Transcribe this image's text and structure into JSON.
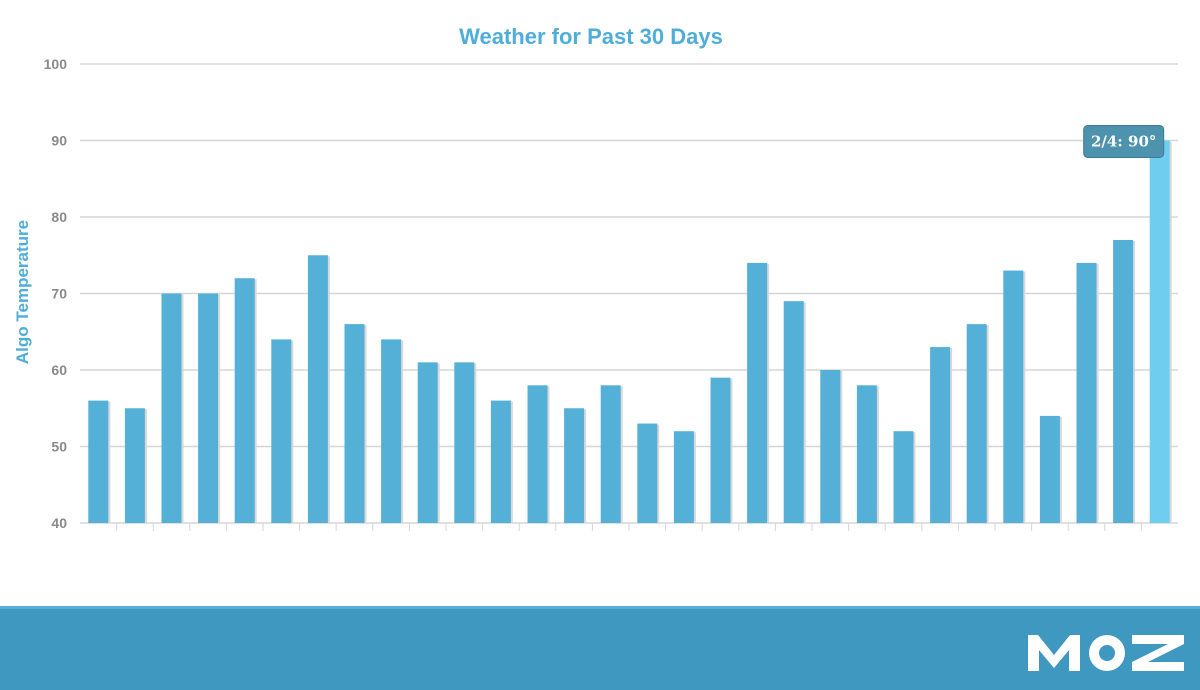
{
  "colors": {
    "bar": "#55b0d8",
    "bar_highlight": "#6fcdf0",
    "bar_shadow": "#d8d8d8",
    "title": "#4faed9",
    "grid": "#d6d6d6",
    "tooltip_bg": "#4d93ad",
    "footer": "#3f98bf"
  },
  "chart_data": {
    "type": "bar",
    "title": "Weather for Past 30 Days",
    "xlabel": "",
    "ylabel": "Algo Temperature",
    "ylim": [
      40,
      100
    ],
    "yticks": [
      40,
      50,
      60,
      70,
      80,
      90,
      100
    ],
    "grid": true,
    "values": [
      56,
      55,
      70,
      70,
      72,
      64,
      75,
      66,
      64,
      61,
      61,
      56,
      58,
      55,
      58,
      53,
      52,
      59,
      74,
      69,
      60,
      58,
      52,
      63,
      66,
      73,
      54,
      74,
      77,
      90
    ],
    "highlight_index": 29,
    "tooltip": "2/4: 90°"
  },
  "footer": {
    "logo_icon": "moz-logo",
    "logo_text": "MOZ"
  }
}
